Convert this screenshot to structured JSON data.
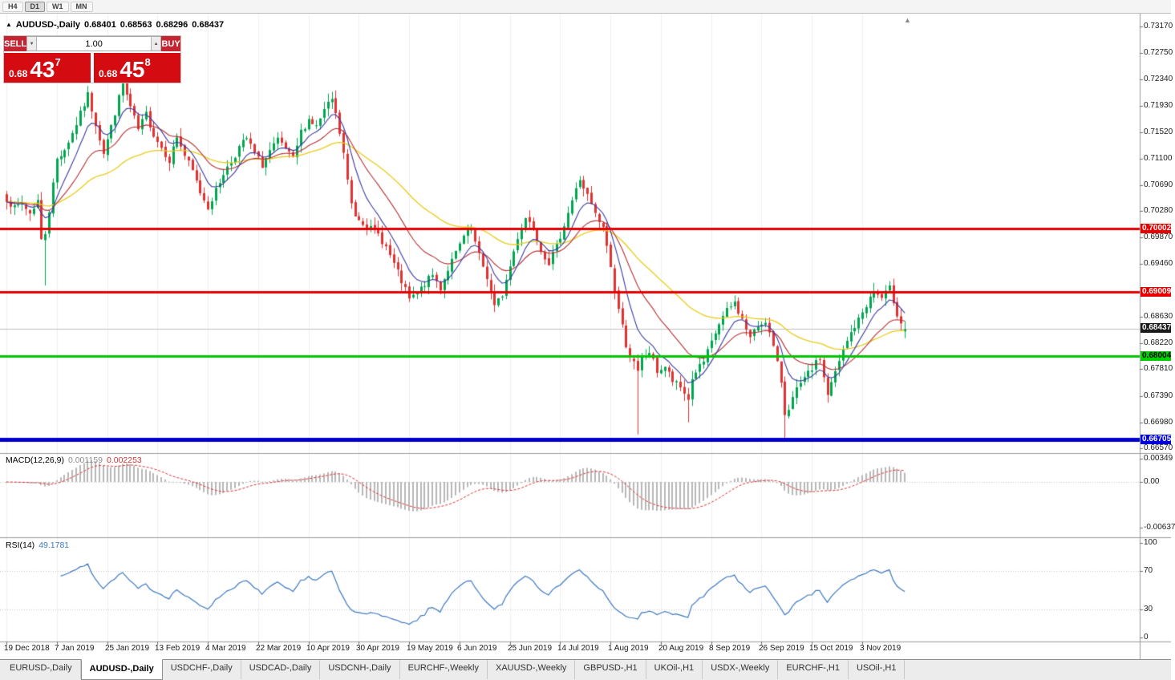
{
  "toolbar": {
    "periods": [
      {
        "label": "H4",
        "active": false
      },
      {
        "label": "D1",
        "active": true
      },
      {
        "label": "W1",
        "active": false
      },
      {
        "label": "MN",
        "active": false
      }
    ]
  },
  "chart_header": {
    "marker": "▲",
    "title": "AUDUSD-,Daily",
    "open": "0.68401",
    "high": "0.68563",
    "low": "0.68296",
    "close": "0.68437",
    "shift_marker": "▲"
  },
  "trade_panel": {
    "sell_label": "SELL",
    "buy_label": "BUY",
    "volume": "1.00",
    "down_arrow": "▼",
    "up_arrow": "▲",
    "sell_price": {
      "small": "0.68",
      "big": "43",
      "sup": "7"
    },
    "buy_price": {
      "small": "0.68",
      "big": "45",
      "sup": "8"
    }
  },
  "price_axis": {
    "ticks": [
      {
        "label": "0.73170",
        "price": 0.7317
      },
      {
        "label": "0.72750",
        "price": 0.7275
      },
      {
        "label": "0.72340",
        "price": 0.7234
      },
      {
        "label": "0.71930",
        "price": 0.7193
      },
      {
        "label": "0.71520",
        "price": 0.7152
      },
      {
        "label": "0.71100",
        "price": 0.711
      },
      {
        "label": "0.70690",
        "price": 0.7069
      },
      {
        "label": "0.70280",
        "price": 0.7028
      },
      {
        "label": "0.69870",
        "price": 0.6987
      },
      {
        "label": "0.69460",
        "price": 0.6946
      },
      {
        "label": "0.68630",
        "price": 0.6863
      },
      {
        "label": "0.68220",
        "price": 0.6822
      },
      {
        "label": "0.67810",
        "price": 0.6781
      },
      {
        "label": "0.67390",
        "price": 0.6739
      },
      {
        "label": "0.66980",
        "price": 0.6698
      },
      {
        "label": "0.66570",
        "price": 0.6657
      }
    ],
    "badges": [
      {
        "label": "0.70002",
        "price": 0.70002,
        "bg": "#e80000",
        "fg": "#ffffff"
      },
      {
        "label": "0.69009",
        "price": 0.69009,
        "bg": "#e80000",
        "fg": "#ffffff"
      },
      {
        "label": "0.68437",
        "price": 0.68437,
        "bg": "#1a1a1a",
        "fg": "#ffffff"
      },
      {
        "label": "0.68004",
        "price": 0.68004,
        "bg": "#00d000",
        "fg": "#000000"
      },
      {
        "label": "0.66705",
        "price": 0.66705,
        "bg": "#0000dd",
        "fg": "#ffffff"
      }
    ]
  },
  "indicators": {
    "macd": {
      "label": "MACD(12,26,9)",
      "value_main": "0.001159",
      "value_signal": "0.002253",
      "axis": [
        "0.00349",
        "0.00",
        "-0.00637"
      ]
    },
    "rsi": {
      "label": "RSI(14)",
      "value": "49.1781",
      "axis": [
        {
          "label": "100",
          "value": 100
        },
        {
          "label": "70",
          "value": 70
        },
        {
          "label": "30",
          "value": 30
        },
        {
          "label": "0",
          "value": 0
        }
      ]
    }
  },
  "date_axis": [
    "19 Dec 2018",
    "7 Jan 2019",
    "25 Jan 2019",
    "13 Feb 2019",
    "4 Mar 2019",
    "22 Mar 2019",
    "10 Apr 2019",
    "30 Apr 2019",
    "19 May 2019",
    "6 Jun 2019",
    "25 Jun 2019",
    "14 Jul 2019",
    "1 Aug 2019",
    "20 Aug 2019",
    "8 Sep 2019",
    "26 Sep 2019",
    "15 Oct 2019",
    "3 Nov 2019"
  ],
  "tabs": [
    {
      "label": "EURUSD-,Daily",
      "active": false
    },
    {
      "label": "AUDUSD-,Daily",
      "active": true
    },
    {
      "label": "USDCHF-,Daily",
      "active": false
    },
    {
      "label": "USDCAD-,Daily",
      "active": false
    },
    {
      "label": "USDCNH-,Daily",
      "active": false
    },
    {
      "label": "EURCHF-,Weekly",
      "active": false
    },
    {
      "label": "XAUUSD-,Weekly",
      "active": false
    },
    {
      "label": "GBPUSD-,H1",
      "active": false
    },
    {
      "label": "UKOil-,H1",
      "active": false
    },
    {
      "label": "USDX-,Weekly",
      "active": false
    },
    {
      "label": "EURCHF-,H1",
      "active": false
    },
    {
      "label": "USOil-,H1",
      "active": false
    }
  ],
  "chart_data": {
    "type": "candlestick",
    "symbol": "AUDUSD",
    "timeframe": "Daily",
    "ohlc": {
      "open": 0.68401,
      "high": 0.68563,
      "low": 0.68296,
      "close": 0.68437
    },
    "candle_count": 233,
    "price_axis_range": [
      0.6652,
      0.7323
    ],
    "seed": 7,
    "noise": 0.0011,
    "wick": 0.0013,
    "close_anchors": [
      [
        0,
        0.7048
      ],
      [
        2,
        0.7032
      ],
      [
        4,
        0.704
      ],
      [
        6,
        0.7025
      ],
      [
        8,
        0.7045
      ],
      [
        9,
        0.6982
      ],
      [
        10,
        0.6995
      ],
      [
        11,
        0.703
      ],
      [
        13,
        0.711
      ],
      [
        15,
        0.7125
      ],
      [
        17,
        0.715
      ],
      [
        19,
        0.718
      ],
      [
        21,
        0.721
      ],
      [
        23,
        0.7165
      ],
      [
        25,
        0.712
      ],
      [
        27,
        0.716
      ],
      [
        29,
        0.7205
      ],
      [
        30,
        0.7228
      ],
      [
        32,
        0.719
      ],
      [
        34,
        0.7155
      ],
      [
        36,
        0.718
      ],
      [
        38,
        0.7148
      ],
      [
        40,
        0.7128
      ],
      [
        42,
        0.7108
      ],
      [
        44,
        0.7145
      ],
      [
        46,
        0.7115
      ],
      [
        48,
        0.709
      ],
      [
        50,
        0.7058
      ],
      [
        52,
        0.7035
      ],
      [
        54,
        0.706
      ],
      [
        56,
        0.7088
      ],
      [
        58,
        0.7105
      ],
      [
        60,
        0.7128
      ],
      [
        62,
        0.7142
      ],
      [
        64,
        0.7118
      ],
      [
        66,
        0.71
      ],
      [
        68,
        0.7122
      ],
      [
        70,
        0.7138
      ],
      [
        72,
        0.7125
      ],
      [
        74,
        0.7108
      ],
      [
        76,
        0.7152
      ],
      [
        78,
        0.7172
      ],
      [
        80,
        0.716
      ],
      [
        82,
        0.7185
      ],
      [
        84,
        0.7203
      ],
      [
        85,
        0.7178
      ],
      [
        86,
        0.715
      ],
      [
        87,
        0.7118
      ],
      [
        88,
        0.7075
      ],
      [
        89,
        0.704
      ],
      [
        90,
        0.7022
      ],
      [
        92,
        0.7012
      ],
      [
        94,
        0.7
      ],
      [
        96,
        0.6992
      ],
      [
        98,
        0.6972
      ],
      [
        100,
        0.6945
      ],
      [
        102,
        0.6918
      ],
      [
        104,
        0.689
      ],
      [
        106,
        0.6898
      ],
      [
        108,
        0.6915
      ],
      [
        110,
        0.6928
      ],
      [
        112,
        0.6908
      ],
      [
        114,
        0.6938
      ],
      [
        116,
        0.6962
      ],
      [
        118,
        0.6988
      ],
      [
        120,
        0.6998
      ],
      [
        122,
        0.6958
      ],
      [
        124,
        0.6925
      ],
      [
        126,
        0.6878
      ],
      [
        128,
        0.6898
      ],
      [
        130,
        0.6942
      ],
      [
        132,
        0.6988
      ],
      [
        134,
        0.7018
      ],
      [
        136,
        0.7005
      ],
      [
        138,
        0.6968
      ],
      [
        140,
        0.6948
      ],
      [
        142,
        0.6972
      ],
      [
        144,
        0.7008
      ],
      [
        146,
        0.7045
      ],
      [
        148,
        0.7078
      ],
      [
        150,
        0.7052
      ],
      [
        152,
        0.7022
      ],
      [
        154,
        0.7
      ],
      [
        155,
        0.6975
      ],
      [
        156,
        0.694
      ],
      [
        157,
        0.6905
      ],
      [
        158,
        0.6875
      ],
      [
        159,
        0.6848
      ],
      [
        160,
        0.682
      ],
      [
        161,
        0.6802
      ],
      [
        162,
        0.679
      ],
      [
        163,
        0.6775
      ],
      [
        164,
        0.6798
      ],
      [
        166,
        0.6808
      ],
      [
        168,
        0.6778
      ],
      [
        170,
        0.6785
      ],
      [
        172,
        0.6762
      ],
      [
        174,
        0.6752
      ],
      [
        176,
        0.6735
      ],
      [
        177,
        0.6765
      ],
      [
        178,
        0.6778
      ],
      [
        180,
        0.6792
      ],
      [
        182,
        0.6822
      ],
      [
        184,
        0.6852
      ],
      [
        186,
        0.6872
      ],
      [
        188,
        0.6885
      ],
      [
        190,
        0.6858
      ],
      [
        192,
        0.683
      ],
      [
        194,
        0.6848
      ],
      [
        196,
        0.6858
      ],
      [
        198,
        0.6815
      ],
      [
        200,
        0.6762
      ],
      [
        201,
        0.6712
      ],
      [
        202,
        0.6722
      ],
      [
        204,
        0.6748
      ],
      [
        206,
        0.6765
      ],
      [
        208,
        0.6782
      ],
      [
        210,
        0.6798
      ],
      [
        211,
        0.6768
      ],
      [
        212,
        0.6742
      ],
      [
        214,
        0.6775
      ],
      [
        216,
        0.681
      ],
      [
        218,
        0.6838
      ],
      [
        220,
        0.6858
      ],
      [
        222,
        0.6882
      ],
      [
        224,
        0.6902
      ],
      [
        226,
        0.6892
      ],
      [
        228,
        0.6907
      ],
      [
        229,
        0.6888
      ],
      [
        230,
        0.6868
      ],
      [
        231,
        0.6855
      ],
      [
        232,
        0.68437
      ]
    ],
    "wick_overrides": [
      {
        "i": 10,
        "low": 0.6912
      },
      {
        "i": 30,
        "high": 0.7236
      },
      {
        "i": 84,
        "high": 0.7208
      },
      {
        "i": 148,
        "high": 0.7083
      },
      {
        "i": 163,
        "low": 0.6679
      },
      {
        "i": 176,
        "low": 0.6698
      },
      {
        "i": 201,
        "low": 0.6671
      },
      {
        "i": 224,
        "high": 0.6916
      }
    ],
    "last_candle": {
      "o": 0.68401,
      "h": 0.68563,
      "l": 0.68296,
      "c": 0.68437
    },
    "ma": [
      {
        "period": 50,
        "color": "#e8cc18",
        "width": 1.3
      },
      {
        "period": 20,
        "color": "#b43232",
        "width": 1.1
      },
      {
        "period": 8,
        "color": "#3a3aa0",
        "width": 1.1
      }
    ],
    "hlines": [
      {
        "price": 0.70002,
        "color": "#e80000",
        "width": 3
      },
      {
        "price": 0.69009,
        "color": "#e80000",
        "width": 3
      },
      {
        "price": 0.68004,
        "color": "#00c800",
        "width": 3
      },
      {
        "price": 0.66705,
        "color": "#0000d0",
        "width": 5
      }
    ],
    "bid_line": {
      "price": 0.68437,
      "color": "#c0c0c0"
    },
    "colors": {
      "up": "#00a551",
      "down": "#e03232",
      "macd_hist": "#b8b8b8",
      "macd_signal": "#e03030",
      "rsi": "#3c78c0",
      "grid": "#f0f0f0"
    },
    "macd_params": [
      12,
      26,
      9
    ],
    "macd_current": {
      "main": 0.001159,
      "signal": 0.002253
    },
    "macd_axis_values": [
      0.00349,
      0.0,
      -0.00637
    ],
    "rsi_period": 14,
    "rsi_current": 49.1781,
    "date_tick_indices": [
      0,
      13,
      26,
      39,
      52,
      65,
      78,
      91,
      104,
      117,
      130,
      143,
      156,
      169,
      182,
      195,
      208,
      221
    ]
  }
}
